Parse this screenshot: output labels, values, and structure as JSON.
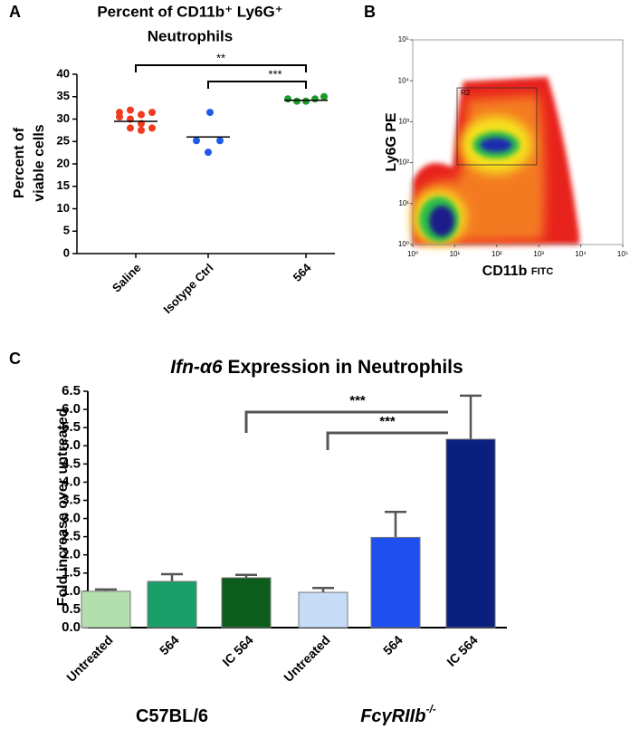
{
  "chart_data": [
    {
      "type": "dotplot",
      "panel": "A",
      "title": [
        "Percent of CD11b⁺ Ly6G⁺",
        "Neutrophils"
      ],
      "ylabel": [
        "Percent of",
        "viable cells"
      ],
      "categories": [
        "Saline",
        "Isotype Ctrl",
        "564"
      ],
      "colors": [
        "#f03c1e",
        "#1e5ae6",
        "#1e9b28"
      ],
      "points": [
        [
          31.5,
          32,
          31,
          31.5,
          30.5,
          30,
          29,
          28,
          28,
          27.5
        ],
        [
          31.5,
          25.2,
          25.2,
          22.6
        ],
        [
          34.5,
          34,
          34,
          34.5,
          35
        ]
      ],
      "means": [
        29.5,
        26,
        34.2
      ],
      "ylim": [
        0,
        40
      ],
      "yticks": [
        0,
        5,
        10,
        15,
        20,
        25,
        30,
        35,
        40
      ],
      "annotations": [
        {
          "label": "**"
        },
        {
          "label": "***"
        }
      ]
    },
    {
      "type": "density",
      "panel": "B",
      "xlabel": "CD11b",
      "xlabel_suffix": "FITC",
      "ylabel": "Ly6G PE",
      "gate": "R2",
      "log": true,
      "xlim": [
        1,
        100000
      ],
      "ylim": [
        1,
        100000
      ],
      "xticks": [
        {
          "value": 1,
          "label": "10⁰"
        },
        {
          "value": 10,
          "label": "10¹"
        },
        {
          "value": 100,
          "label": "10²"
        },
        {
          "value": 1000,
          "label": "10³"
        },
        {
          "value": 10000,
          "label": "10⁴"
        },
        {
          "value": 100000,
          "label": "10⁵"
        }
      ],
      "yticks": [
        {
          "value": 1,
          "label": "10⁰"
        },
        {
          "value": 10,
          "label": "10¹"
        },
        {
          "value": 100,
          "label": "10²"
        },
        {
          "value": 1000,
          "label": "10³"
        },
        {
          "value": 10000,
          "label": "10⁴"
        },
        {
          "value": 100000,
          "label": "10⁵"
        }
      ]
    },
    {
      "type": "bar",
      "panel": "C",
      "title": {
        "italic": "Ifn-α6",
        "rest": "Expression in Neutrophils"
      },
      "ylabel": "Fold increase over untreated",
      "categories": [
        "Untreated",
        "564",
        "IC 564",
        "Untreated",
        "564",
        "IC 564"
      ],
      "values": [
        1.0,
        1.27,
        1.37,
        0.97,
        2.48,
        5.18
      ],
      "errors": [
        0.05,
        0.2,
        0.08,
        0.12,
        0.7,
        1.2
      ],
      "colors": [
        "#b3dfae",
        "#1a9e6a",
        "#0c5c1c",
        "#c6dcf6",
        "#1e50f0",
        "#0a1f7e"
      ],
      "groups": [
        {
          "label": "C57BL/6"
        },
        {
          "label": "FcγRIIb",
          "sup": "-/-"
        }
      ],
      "ylim": [
        0,
        6.5
      ],
      "yticks": [
        {
          "value": 0,
          "label": "0.0"
        },
        0.5,
        {
          "value": 1,
          "label": "1.0"
        },
        1.5,
        {
          "value": 2,
          "label": "2.0"
        },
        2.5,
        {
          "value": 3,
          "label": "3.0"
        },
        3.5,
        {
          "value": 4,
          "label": "4.0"
        },
        4.5,
        {
          "value": 5,
          "label": "5.0"
        },
        5.5,
        {
          "value": 6,
          "label": "6.0"
        },
        6.5
      ],
      "annotations": [
        {
          "label": "***"
        },
        {
          "label": "***"
        }
      ]
    }
  ]
}
